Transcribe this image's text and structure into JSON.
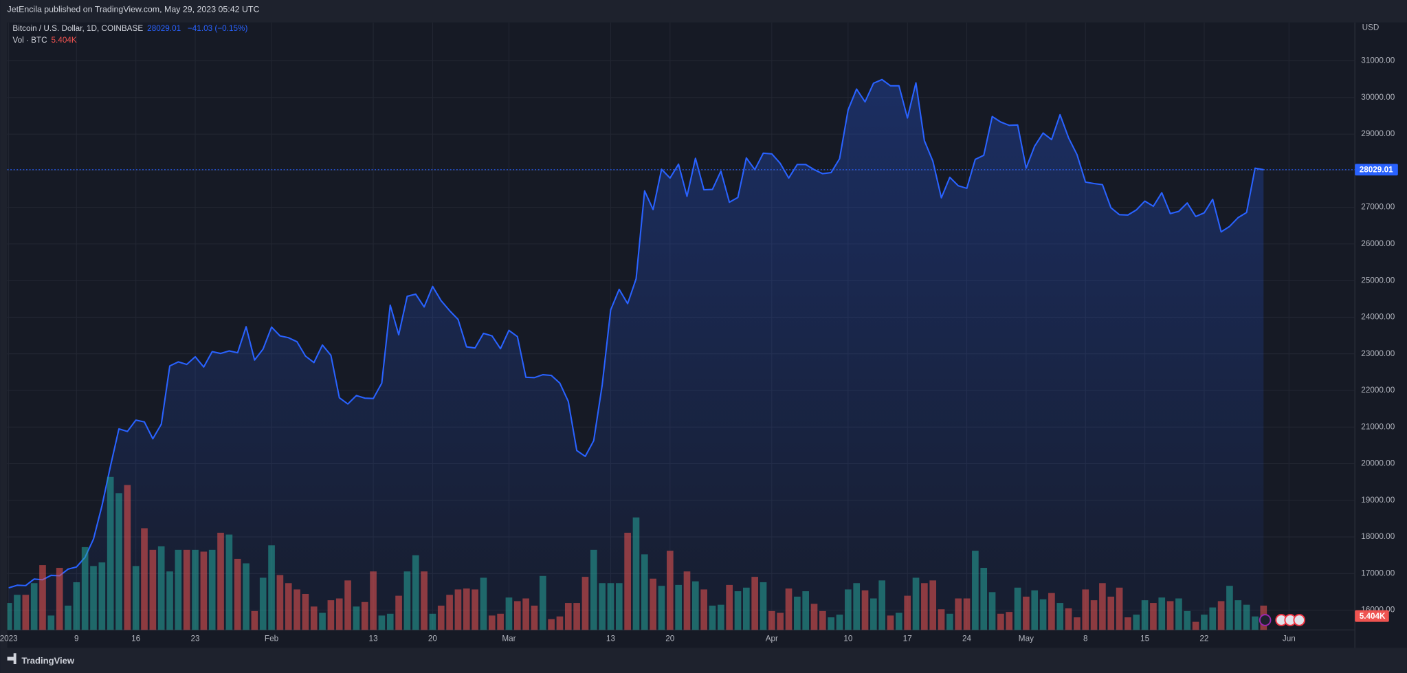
{
  "chart_data": {
    "type": "line",
    "publisher": "JetEncila published on TradingView.com, May 29, 2023 05:42 UTC",
    "change": "−41.03 (−0.15%)",
    "y_axis_label": "USD",
    "brand": "TradingView",
    "categories": [
      "2023",
      null,
      null,
      null,
      null,
      null,
      null,
      null,
      "9",
      null,
      null,
      null,
      null,
      null,
      null,
      "16",
      null,
      null,
      null,
      null,
      null,
      null,
      "23",
      null,
      null,
      null,
      null,
      null,
      null,
      null,
      null,
      "Feb",
      null,
      null,
      null,
      null,
      null,
      null,
      null,
      null,
      null,
      null,
      null,
      "13",
      null,
      null,
      null,
      null,
      null,
      null,
      "20",
      null,
      null,
      null,
      null,
      null,
      null,
      null,
      null,
      "Mar",
      null,
      null,
      null,
      null,
      null,
      null,
      null,
      null,
      null,
      null,
      null,
      "13",
      null,
      null,
      null,
      null,
      null,
      null,
      "20",
      null,
      null,
      null,
      null,
      null,
      null,
      null,
      null,
      null,
      null,
      null,
      "Apr",
      null,
      null,
      null,
      null,
      null,
      null,
      null,
      null,
      "10",
      null,
      null,
      null,
      null,
      null,
      null,
      "17",
      null,
      null,
      null,
      null,
      null,
      null,
      "24",
      null,
      null,
      null,
      null,
      null,
      null,
      "May",
      null,
      null,
      null,
      null,
      null,
      null,
      "8",
      null,
      null,
      null,
      null,
      null,
      null,
      "15",
      null,
      null,
      null,
      null,
      null,
      null,
      "22",
      null,
      null,
      null,
      null,
      null,
      null,
      null,
      null,
      null,
      "Jun"
    ],
    "series": [
      {
        "name": "Bitcoin / U.S. Dollar, 1D, COINBASE",
        "color": "#2962ff",
        "values": [
          16610,
          16680,
          16670,
          16850,
          16830,
          16950,
          16940,
          17120,
          17180,
          17440,
          17940,
          18850,
          19930,
          20950,
          20880,
          21190,
          21140,
          20680,
          21080,
          22670,
          22780,
          22710,
          22920,
          22640,
          23060,
          23010,
          23080,
          23030,
          23740,
          22830,
          23130,
          23730,
          23490,
          23440,
          23330,
          22940,
          22760,
          23240,
          22960,
          21800,
          21630,
          21860,
          21790,
          21780,
          22200,
          24330,
          23520,
          24570,
          24630,
          24280,
          24840,
          24450,
          24180,
          23940,
          23190,
          23160,
          23560,
          23490,
          23140,
          23640,
          23470,
          22360,
          22350,
          22430,
          22410,
          22200,
          21700,
          20360,
          20200,
          20630,
          22150,
          24200,
          24760,
          24370,
          25050,
          27450,
          26940,
          28040,
          27800,
          28180,
          27300,
          28340,
          27480,
          27490,
          27990,
          27140,
          27270,
          28350,
          28030,
          28480,
          28460,
          28200,
          27800,
          28170,
          28170,
          28030,
          27920,
          27950,
          28330,
          29660,
          30230,
          29880,
          30390,
          30490,
          30320,
          30320,
          29440,
          30400,
          28820,
          28260,
          27260,
          27820,
          27590,
          27520,
          28310,
          28420,
          29480,
          29330,
          29240,
          29250,
          28070,
          28670,
          29030,
          28850,
          29530,
          28900,
          28440,
          27690,
          27650,
          27620,
          26990,
          26800,
          26790,
          26930,
          27170,
          27030,
          27400,
          26830,
          26890,
          27120,
          26750,
          26850,
          27220,
          26330,
          26480,
          26720,
          26860,
          28070,
          28029.01,
          null,
          null,
          null
        ]
      },
      {
        "name": "Vol · BTC",
        "type": "bar",
        "axis": "y2",
        "up_color": "#26a69a",
        "down_color": "#ef5350",
        "last_label": "5.404K",
        "values": [
          6,
          7.8,
          7.8,
          10.4,
          14.4,
          3.2,
          13.8,
          5.4,
          10.6,
          18.4,
          14.2,
          15.0,
          34.0,
          30.4,
          32.2,
          14.2,
          22.6,
          17.8,
          18.6,
          13.0,
          17.8,
          17.8,
          17.8,
          17.4,
          17.8,
          21.6,
          21.2,
          15.8,
          14.8,
          4.2,
          11.6,
          18.8,
          12.2,
          10.4,
          9.0,
          8.0,
          5.2,
          3.8,
          6.6,
          7.0,
          11.0,
          5.2,
          6.2,
          13.0,
          3.2,
          3.6,
          7.6,
          13.0,
          16.6,
          13.0,
          3.6,
          5.4,
          7.8,
          9.0,
          9.2,
          9.0,
          11.6,
          3.2,
          3.6,
          7.2,
          6.4,
          7.0,
          5.4,
          12.0,
          2.4,
          3.0,
          6.0,
          6.0,
          11.8,
          17.8,
          10.4,
          10.4,
          10.4,
          21.6,
          25.0,
          16.8,
          11.4,
          9.8,
          17.6,
          10.0,
          13.0,
          10.8,
          9.0,
          5.4,
          5.6,
          10.0,
          8.6,
          9.4,
          11.8,
          10.6,
          4.2,
          3.8,
          9.2,
          7.4,
          8.6,
          5.8,
          4.2,
          2.8,
          3.4,
          9.0,
          10.4,
          8.8,
          7.0,
          11.0,
          3.2,
          3.8,
          7.6,
          11.6,
          10.4,
          11.0,
          4.6,
          3.6,
          7.0,
          7.0,
          17.6,
          13.8,
          8.4,
          3.6,
          4.0,
          9.4,
          7.4,
          8.8,
          6.8,
          8.2,
          6.0,
          4.8,
          2.8,
          9.0,
          6.6,
          10.4,
          7.4,
          9.4,
          2.8,
          3.4,
          6.6,
          6.0,
          7.2,
          6.4,
          7.0,
          4.2,
          1.8,
          3.4,
          5.0,
          6.4,
          9.8,
          6.6,
          5.6,
          3.0,
          5.404,
          null,
          null,
          null
        ]
      }
    ],
    "ylim": [
      15460,
      32050
    ],
    "yticks": [
      {
        "value": 16000,
        "label": "16000.00"
      },
      {
        "value": 17000,
        "label": "17000.00"
      },
      {
        "value": 18000,
        "label": "18000.00"
      },
      {
        "value": 19000,
        "label": "19000.00"
      },
      {
        "value": 20000,
        "label": "20000.00"
      },
      {
        "value": 21000,
        "label": "21000.00"
      },
      {
        "value": 22000,
        "label": "22000.00"
      },
      {
        "value": 23000,
        "label": "23000.00"
      },
      {
        "value": 24000,
        "label": "24000.00"
      },
      {
        "value": 25000,
        "label": "25000.00"
      },
      {
        "value": 26000,
        "label": "26000.00"
      },
      {
        "value": 27000,
        "label": "27000.00"
      },
      {
        "value": 28000,
        "label": "28000.00"
      },
      {
        "value": 29000,
        "label": "29000.00"
      },
      {
        "value": 30000,
        "label": "30000.00"
      },
      {
        "value": 31000,
        "label": "31000.00"
      }
    ],
    "y2lim": [
      0,
      135
    ],
    "grid": true
  }
}
